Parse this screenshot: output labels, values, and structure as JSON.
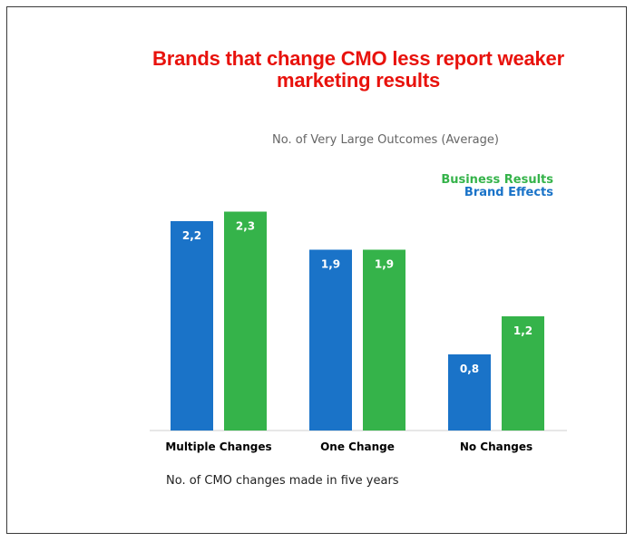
{
  "colors": {
    "title": "#e8120c",
    "brand_effects": "#1a73c8",
    "business_results": "#35b34a"
  },
  "chart_data": {
    "type": "bar",
    "title": "Brands that change CMO less report weaker marketing results",
    "ylabel": "No. of Very Large Outcomes (Average)",
    "xlabel": "No. of CMO changes made in five years",
    "categories": [
      "Multiple Changes",
      "One Change",
      "No Changes"
    ],
    "series": [
      {
        "name": "Brand Effects",
        "color": "#1a73c8",
        "values": [
          2.2,
          1.9,
          0.8
        ],
        "labels": [
          "2,2",
          "1,9",
          "0,8"
        ]
      },
      {
        "name": "Business Results",
        "color": "#35b34a",
        "values": [
          2.3,
          1.9,
          1.2
        ],
        "labels": [
          "2,3",
          "1,9",
          "1,2"
        ]
      }
    ],
    "ylim": [
      0,
      2.5
    ],
    "grid": false,
    "legend_position": "top-right",
    "legend_order": [
      "Business Results",
      "Brand Effects"
    ]
  }
}
